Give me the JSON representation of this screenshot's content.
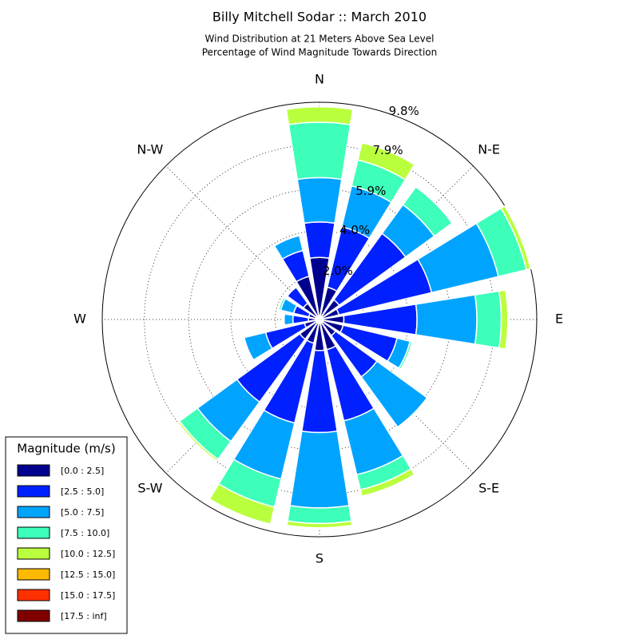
{
  "chart_data": {
    "type": "windrose",
    "title": "Billy Mitchell Sodar :: March 2010",
    "subtitle": [
      "Wind Distribution at 21 Meters Above Sea Level",
      "Percentage of Wind Magnitude Towards Direction"
    ],
    "categories": [
      "N",
      null,
      "N-E",
      null,
      "E",
      null,
      "S-E",
      null,
      "S",
      null,
      "S-W",
      null,
      "W",
      null,
      "N-W",
      null
    ],
    "ylim": [
      0,
      9.8
    ],
    "yticks": [
      {
        "value": 2.0,
        "label": "2.0%"
      },
      {
        "value": 4.0,
        "label": "4.0%"
      },
      {
        "value": 5.9,
        "label": "5.9%"
      },
      {
        "value": 7.9,
        "label": "7.9%"
      },
      {
        "value": 9.8,
        "label": "9.8%"
      }
    ],
    "grid": true,
    "legend_title": "Magnitude (m/s)",
    "legend": "lower left",
    "series": [
      {
        "name": "[0.0 : 2.5]",
        "color": "#00008f",
        "values": [
          2.8,
          1.5,
          1.1,
          0.9,
          1.1,
          1.1,
          0.9,
          1.4,
          1.4,
          1.1,
          1.1,
          0.7,
          0.5,
          0.5,
          0.9,
          2.0
        ]
      },
      {
        "name": "[2.5 : 5.0]",
        "color": "#0020ff",
        "values": [
          1.6,
          2.8,
          3.7,
          4.3,
          3.3,
          2.5,
          2.3,
          3.3,
          3.7,
          3.7,
          3.5,
          1.8,
          0.7,
          0.7,
          0.9,
          1.2
        ]
      },
      {
        "name": "[5.0 : 7.5]",
        "color": "#00a4ff",
        "values": [
          2.0,
          1.9,
          1.6,
          3.1,
          2.7,
          0.6,
          2.8,
          2.5,
          3.4,
          2.6,
          2.2,
          1.0,
          0.4,
          0.6,
          0,
          0.7
        ]
      },
      {
        "name": "[7.5 : 10.0]",
        "color": "#3dffba",
        "values": [
          2.5,
          1.2,
          1.0,
          1.3,
          1.1,
          0.1,
          0.05,
          0.7,
          0.7,
          1.3,
          1.0,
          0,
          0,
          0.1,
          0,
          0
        ]
      },
      {
        "name": "[10.0 : 12.5]",
        "color": "#baff3d",
        "values": [
          0.7,
          0.8,
          0,
          0.2,
          0.3,
          0,
          0,
          0.3,
          0.2,
          0.8,
          0.1,
          0,
          0,
          0,
          0,
          0
        ]
      },
      {
        "name": "[12.5 : 15.0]",
        "color": "#ffb900",
        "values": [
          0,
          0,
          0,
          0,
          0,
          0,
          0,
          0,
          0,
          0,
          0,
          0,
          0,
          0,
          0,
          0
        ]
      },
      {
        "name": "[15.0 : 17.5]",
        "color": "#ff3000",
        "values": [
          0,
          0,
          0,
          0,
          0,
          0,
          0,
          0,
          0,
          0,
          0,
          0,
          0,
          0,
          0,
          0
        ]
      },
      {
        "name": "[17.5 : inf]",
        "color": "#800000",
        "values": [
          0,
          0,
          0,
          0,
          0,
          0,
          0,
          0,
          0,
          0,
          0,
          0,
          0,
          0,
          0,
          0
        ]
      }
    ]
  }
}
